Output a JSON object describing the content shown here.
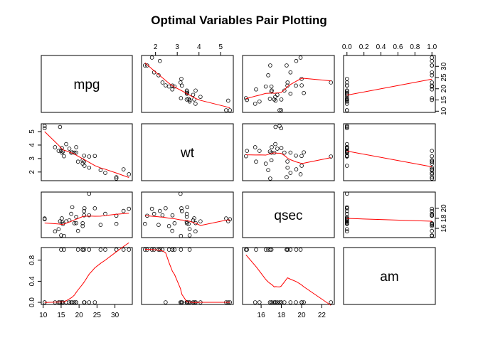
{
  "chart_data": {
    "type": "scatter",
    "title": "Optimal Variables Pair Plotting",
    "variables": [
      {
        "name": "mpg",
        "range": [
          10.4,
          33.9
        ],
        "ticks": [
          10,
          15,
          20,
          25,
          30
        ],
        "tick_labels": [
          "10",
          "15",
          "20",
          "25",
          "30"
        ],
        "side_ticks": [
          10,
          15,
          20,
          25,
          30
        ],
        "side_tick_labels": [
          "10",
          "15",
          "20",
          "25",
          "30"
        ]
      },
      {
        "name": "wt",
        "range": [
          1.513,
          5.424
        ],
        "ticks": [
          2,
          3,
          4,
          5
        ],
        "tick_labels": [
          "2",
          "3",
          "4",
          "5"
        ]
      },
      {
        "name": "qsec",
        "range": [
          14.5,
          22.9
        ],
        "ticks": [
          16,
          18,
          20,
          22
        ],
        "tick_labels": [
          "16",
          "18",
          "20",
          "22"
        ],
        "side_ticks": [
          16,
          18,
          20
        ],
        "side_tick_labels": [
          "16",
          "18",
          "20"
        ]
      },
      {
        "name": "am",
        "range": [
          0,
          1
        ],
        "ticks": [
          0.0,
          0.2,
          0.4,
          0.6,
          0.8,
          1.0
        ],
        "tick_labels": [
          "0.0",
          "0.2",
          "0.4",
          "0.6",
          "0.8",
          "1.0"
        ],
        "side_ticks": [
          0.0,
          0.4,
          0.8
        ],
        "side_tick_labels": [
          "0.0",
          "0.4",
          "0.8"
        ]
      }
    ],
    "observations": [
      [
        21.0,
        2.62,
        16.46,
        1
      ],
      [
        21.0,
        2.875,
        17.02,
        1
      ],
      [
        22.8,
        2.32,
        18.61,
        1
      ],
      [
        21.4,
        3.215,
        19.44,
        0
      ],
      [
        18.7,
        3.44,
        17.02,
        0
      ],
      [
        18.1,
        3.46,
        20.22,
        0
      ],
      [
        14.3,
        3.57,
        15.84,
        0
      ],
      [
        24.4,
        3.19,
        20.0,
        0
      ],
      [
        22.8,
        3.15,
        22.9,
        0
      ],
      [
        19.2,
        3.44,
        18.3,
        0
      ],
      [
        17.8,
        3.44,
        18.9,
        0
      ],
      [
        16.4,
        4.07,
        17.4,
        0
      ],
      [
        17.3,
        3.73,
        17.6,
        0
      ],
      [
        15.2,
        3.78,
        18.0,
        0
      ],
      [
        10.4,
        5.25,
        17.98,
        0
      ],
      [
        10.4,
        5.424,
        17.82,
        0
      ],
      [
        14.7,
        5.345,
        17.42,
        0
      ],
      [
        32.4,
        2.2,
        19.47,
        1
      ],
      [
        30.4,
        1.615,
        18.52,
        1
      ],
      [
        33.9,
        1.835,
        19.9,
        1
      ],
      [
        21.5,
        2.465,
        20.01,
        0
      ],
      [
        15.5,
        3.52,
        16.87,
        0
      ],
      [
        15.2,
        3.435,
        17.3,
        0
      ],
      [
        13.3,
        3.84,
        15.41,
        0
      ],
      [
        19.2,
        3.845,
        17.05,
        0
      ],
      [
        27.3,
        1.935,
        18.9,
        1
      ],
      [
        26.0,
        2.14,
        16.7,
        1
      ],
      [
        30.4,
        1.513,
        16.9,
        1
      ],
      [
        15.8,
        3.17,
        14.5,
        1
      ],
      [
        19.7,
        2.77,
        15.5,
        1
      ],
      [
        15.0,
        3.57,
        14.6,
        1
      ],
      [
        21.4,
        2.78,
        18.6,
        1
      ]
    ],
    "smooth_line_color": "#ff0000",
    "point_color": "#000000",
    "grid": false,
    "legend": "none"
  }
}
